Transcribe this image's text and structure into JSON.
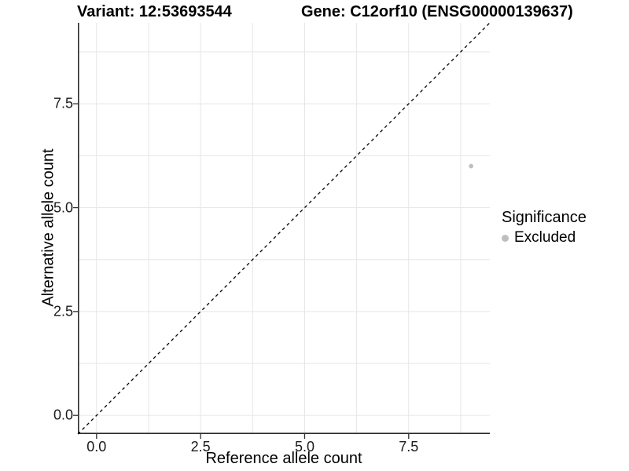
{
  "chart_data": {
    "type": "scatter",
    "title_left": "Variant: 12:53693544",
    "title_right": "Gene: C12orf10 (ENSG00000139637)",
    "xlabel": "Reference allele count",
    "ylabel": "Alternative allele count",
    "xlim": [
      -0.45,
      9.45
    ],
    "ylim": [
      -0.45,
      9.45
    ],
    "x_tick_values": [
      0,
      2.5,
      5,
      7.5
    ],
    "x_tick_labels": [
      "0.0",
      "2.5",
      "5.0",
      "7.5"
    ],
    "y_tick_values": [
      0,
      2.5,
      5,
      7.5
    ],
    "y_tick_labels": [
      "0.0",
      "2.5",
      "5.0",
      "7.5"
    ],
    "grid_step": 1.25,
    "grid_on": true,
    "reference_line": {
      "kind": "abline",
      "slope": 1,
      "intercept": 0,
      "style": "dashed",
      "color": "#000000"
    },
    "series": [
      {
        "name": "Excluded",
        "color": "#bebebe",
        "points": [
          {
            "x": 9,
            "y": 6
          }
        ]
      }
    ],
    "legend": {
      "title": "Significance",
      "position": "right",
      "items": [
        {
          "label": "Excluded",
          "color": "#bebebe"
        }
      ]
    }
  },
  "colors": {
    "background": "#ffffff",
    "gridline": "#e6e6e6",
    "axis_line": "#2e2e2e",
    "tick_text": "#1a1a1a",
    "point_gray": "#bebebe"
  }
}
